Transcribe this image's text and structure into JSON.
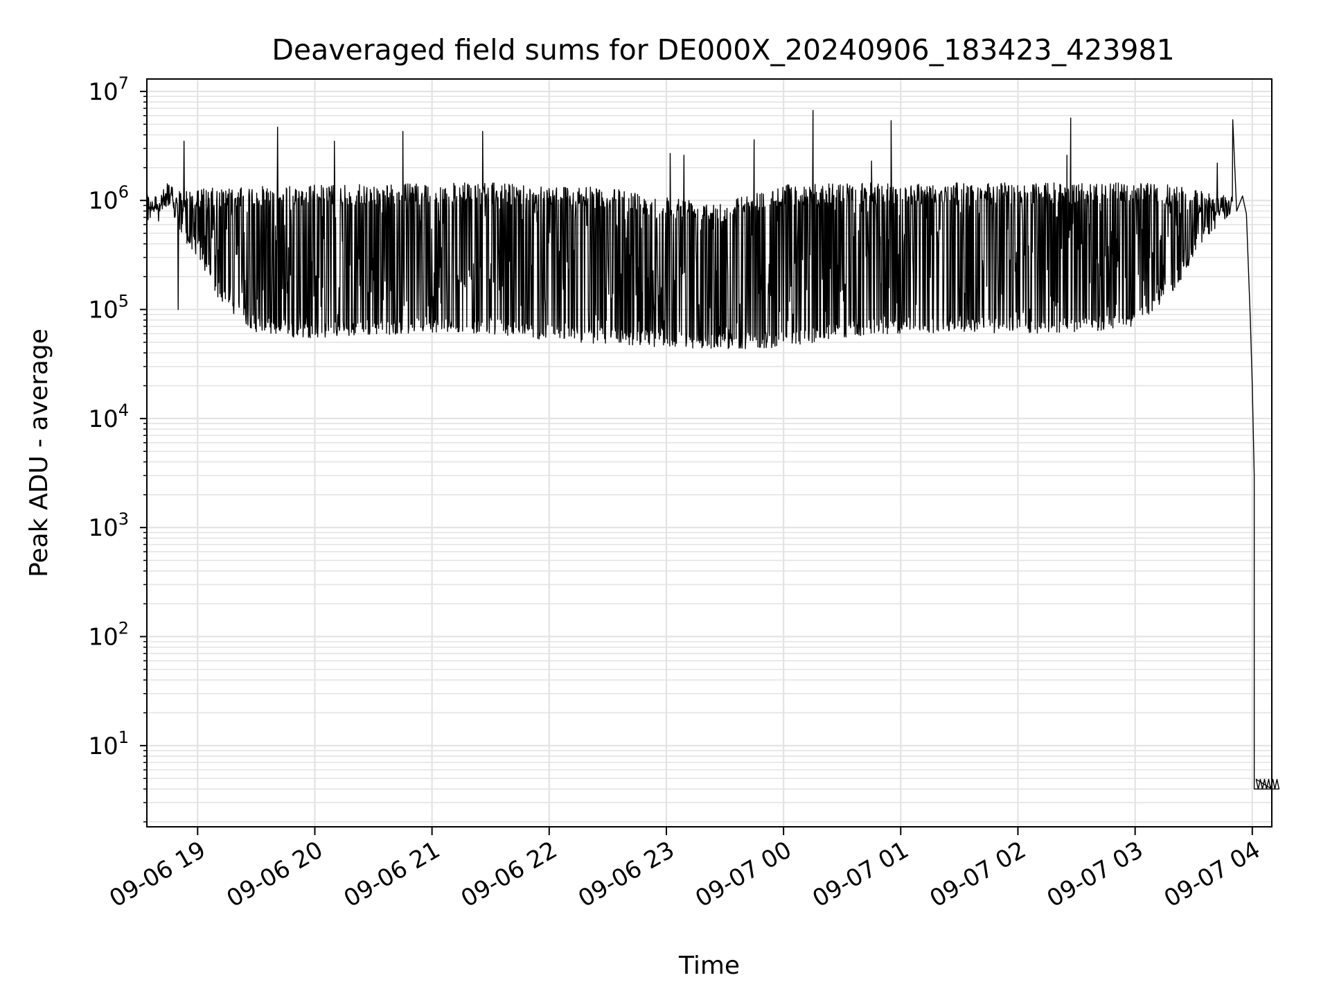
{
  "chart_data": {
    "type": "line",
    "title": "Deaveraged field sums for DE000X_20240906_183423_423981",
    "xlabel": "Time",
    "ylabel": "Peak ADU - average",
    "yscale": "log",
    "ylim": [
      1.8,
      13000000
    ],
    "xlim": [
      "2024-09-06T18:34",
      "2024-09-07T04:10"
    ],
    "grid": true,
    "line_color": "#000000",
    "y_ticks": [
      {
        "value": 10,
        "base": "10",
        "exp": "1"
      },
      {
        "value": 100,
        "base": "10",
        "exp": "2"
      },
      {
        "value": 1000,
        "base": "10",
        "exp": "3"
      },
      {
        "value": 10000,
        "base": "10",
        "exp": "4"
      },
      {
        "value": 100000,
        "base": "10",
        "exp": "5"
      },
      {
        "value": 1000000,
        "base": "10",
        "exp": "6"
      },
      {
        "value": 10000000,
        "base": "10",
        "exp": "7"
      }
    ],
    "x_ticks": [
      {
        "time": "2024-09-06T19:00",
        "label": "09-06 19"
      },
      {
        "time": "2024-09-06T20:00",
        "label": "09-06 20"
      },
      {
        "time": "2024-09-06T21:00",
        "label": "09-06 21"
      },
      {
        "time": "2024-09-06T22:00",
        "label": "09-06 22"
      },
      {
        "time": "2024-09-06T23:00",
        "label": "09-06 23"
      },
      {
        "time": "2024-09-07T00:00",
        "label": "09-07 00"
      },
      {
        "time": "2024-09-07T01:00",
        "label": "09-07 01"
      },
      {
        "time": "2024-09-07T02:00",
        "label": "09-07 02"
      },
      {
        "time": "2024-09-07T03:00",
        "label": "09-07 03"
      },
      {
        "time": "2024-09-07T04:00",
        "label": "09-07 04"
      }
    ],
    "series": [
      {
        "envelope": [
          {
            "t": "2024-09-06T18:34",
            "high": 1000000,
            "low": 800000
          },
          {
            "t": "2024-09-06T18:41",
            "high": 1000000,
            "low": 800000
          },
          {
            "t": "2024-09-06T18:45",
            "high": 1400000,
            "low": 1100000
          },
          {
            "t": "2024-09-06T18:50",
            "high": 1200000,
            "low": 500000
          },
          {
            "t": "2024-09-06T18:55",
            "high": 1300000,
            "low": 380000
          },
          {
            "t": "2024-09-06T19:00",
            "high": 1300000,
            "low": 300000
          },
          {
            "t": "2024-09-06T19:10",
            "high": 1300000,
            "low": 130000
          },
          {
            "t": "2024-09-06T19:20",
            "high": 1300000,
            "low": 85000
          },
          {
            "t": "2024-09-06T19:30",
            "high": 1350000,
            "low": 62000
          },
          {
            "t": "2024-09-06T19:45",
            "high": 1350000,
            "low": 55000
          },
          {
            "t": "2024-09-06T20:00",
            "high": 1400000,
            "low": 55000
          },
          {
            "t": "2024-09-06T20:30",
            "high": 1400000,
            "low": 58000
          },
          {
            "t": "2024-09-06T21:00",
            "high": 1450000,
            "low": 62000
          },
          {
            "t": "2024-09-06T21:30",
            "high": 1450000,
            "low": 60000
          },
          {
            "t": "2024-09-06T22:00",
            "high": 1400000,
            "low": 52000
          },
          {
            "t": "2024-09-06T22:30",
            "high": 1300000,
            "low": 48000
          },
          {
            "t": "2024-09-06T23:00",
            "high": 1100000,
            "low": 45000
          },
          {
            "t": "2024-09-06T23:30",
            "high": 1000000,
            "low": 43000
          },
          {
            "t": "2024-09-07T00:00",
            "high": 1400000,
            "low": 45000
          },
          {
            "t": "2024-09-07T00:30",
            "high": 1450000,
            "low": 55000
          },
          {
            "t": "2024-09-07T01:00",
            "high": 1450000,
            "low": 60000
          },
          {
            "t": "2024-09-07T01:30",
            "high": 1450000,
            "low": 62000
          },
          {
            "t": "2024-09-07T02:00",
            "high": 1450000,
            "low": 60000
          },
          {
            "t": "2024-09-07T02:30",
            "high": 1450000,
            "low": 62000
          },
          {
            "t": "2024-09-07T03:00",
            "high": 1450000,
            "low": 65000
          },
          {
            "t": "2024-09-07T03:20",
            "high": 1400000,
            "low": 150000
          },
          {
            "t": "2024-09-07T03:35",
            "high": 1200000,
            "low": 400000
          },
          {
            "t": "2024-09-07T03:50",
            "high": 1100000,
            "low": 800000
          }
        ],
        "spikes": [
          {
            "t": "2024-09-06T18:50",
            "y": 100000
          },
          {
            "t": "2024-09-06T18:53",
            "y": 3500000
          },
          {
            "t": "2024-09-06T19:41",
            "y": 4700000
          },
          {
            "t": "2024-09-06T20:10",
            "y": 3500000
          },
          {
            "t": "2024-09-06T20:45",
            "y": 4300000
          },
          {
            "t": "2024-09-06T21:26",
            "y": 4300000
          },
          {
            "t": "2024-09-06T23:02",
            "y": 2700000
          },
          {
            "t": "2024-09-06T23:09",
            "y": 2600000
          },
          {
            "t": "2024-09-06T23:45",
            "y": 3600000
          },
          {
            "t": "2024-09-07T00:15",
            "y": 6700000
          },
          {
            "t": "2024-09-07T00:45",
            "y": 2300000
          },
          {
            "t": "2024-09-07T00:55",
            "y": 5400000
          },
          {
            "t": "2024-09-07T02:25",
            "y": 2600000
          },
          {
            "t": "2024-09-07T02:27",
            "y": 5700000
          },
          {
            "t": "2024-09-07T03:42",
            "y": 2200000
          },
          {
            "t": "2024-09-07T03:52",
            "y": 5500000
          }
        ],
        "tail": [
          {
            "t": "2024-09-07T03:52",
            "y": 800000
          },
          {
            "t": "2024-09-07T03:55",
            "y": 1100000
          },
          {
            "t": "2024-09-07T03:57",
            "y": 750000
          },
          {
            "t": "2024-09-07T03:59",
            "y": 80000
          },
          {
            "t": "2024-09-07T04:00",
            "y": 20000
          },
          {
            "t": "2024-09-07T04:01",
            "y": 3000
          },
          {
            "t": "2024-09-07T04:01",
            "y": 4
          },
          {
            "t": "2024-09-07T04:10",
            "y": 4
          }
        ]
      }
    ]
  }
}
